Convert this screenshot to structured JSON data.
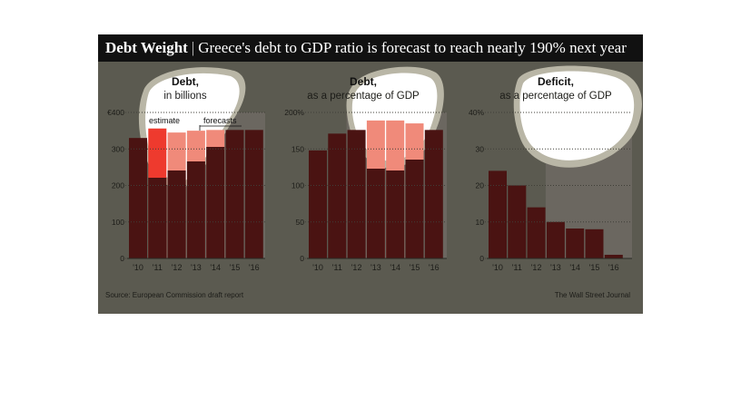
{
  "title": "Debt Weight",
  "subtitle": "Greece's debt to GDP ratio is forecast to reach nearly 190% next year",
  "source": "Source: European Commission draft report",
  "credit": "The Wall Street Journal",
  "colors": {
    "background": "#5b5a50",
    "title_bar": "#111111",
    "bar_dark": "#4a1312",
    "bar_highlight": "#f08a7a",
    "bar_estimate": "#ee3a2e",
    "forecast_band": "#6b6760",
    "blob_fill": "#ffffff",
    "blob_outline": "#b9b6a6"
  },
  "chart_data": [
    {
      "type": "bar",
      "title": "Debt,",
      "subtitle": "in billions",
      "categories": [
        "'10",
        "'11",
        "'12",
        "'13",
        "'14",
        "'15",
        "'16"
      ],
      "values": [
        330,
        356,
        345,
        350,
        352,
        352,
        352
      ],
      "yticks": [
        "0",
        "100",
        "200",
        "300",
        "€400"
      ],
      "ylim": [
        0,
        400
      ],
      "annotations": {
        "estimate": "estimate",
        "forecasts": "forecasts"
      },
      "forecast_from": 2,
      "estimate_index": 1
    },
    {
      "type": "bar",
      "title": "Debt,",
      "subtitle": "as a percentage of GDP",
      "categories": [
        "'10",
        "'11",
        "'12",
        "'13",
        "'14",
        "'15",
        "'16"
      ],
      "values": [
        148,
        171,
        176,
        189,
        189,
        185,
        176
      ],
      "yticks": [
        "0",
        "50",
        "100",
        "150",
        "200%"
      ],
      "ylim": [
        0,
        200
      ],
      "forecast_from": 2
    },
    {
      "type": "bar",
      "title": "Deficit,",
      "subtitle": "as a percentage of GDP",
      "categories": [
        "'10",
        "'11",
        "'12",
        "'13",
        "'14",
        "'15",
        "'16"
      ],
      "values": [
        24,
        20,
        14,
        10,
        8.2,
        8,
        1
      ],
      "yticks": [
        "0",
        "10",
        "20",
        "30",
        "40%"
      ],
      "ylim": [
        0,
        40
      ],
      "forecast_from": 3
    }
  ]
}
